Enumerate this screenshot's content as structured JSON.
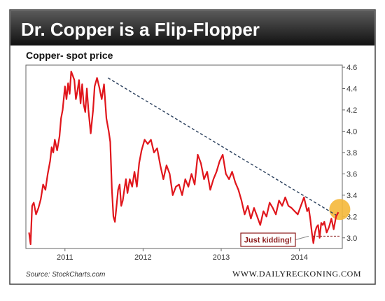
{
  "banner": {
    "title": "Dr. Copper is a Flip-Flopper"
  },
  "chart_title": "Copper- spot price",
  "source": "Source: StockCharts.com",
  "brand": "WWW.DAILYRECKONING.COM",
  "colors": {
    "banner_top": "#5a5a5a",
    "banner_bottom": "#111111",
    "line": "#e0161c",
    "trend": "#2a3f5c",
    "highlight": "#f5b83a",
    "annotation_border": "#8b1a1a",
    "annotation_text": "#8b1a1a"
  },
  "chart_data": {
    "type": "line",
    "title": "Copper- spot price",
    "xlabel": "",
    "ylabel": "",
    "x_ticks": [
      "2011",
      "2012",
      "2013",
      "2014"
    ],
    "y_ticks": [
      3.0,
      3.2,
      3.4,
      3.6,
      3.8,
      4.0,
      4.2,
      4.4,
      4.6
    ],
    "xlim": [
      2010.5,
      2014.55
    ],
    "ylim": [
      2.9,
      4.62
    ],
    "grid": false,
    "series": [
      {
        "x": [
          2010.54,
          2010.56,
          2010.58,
          2010.6,
          2010.63,
          2010.66,
          2010.69,
          2010.72,
          2010.75,
          2010.78,
          2010.81,
          2010.83,
          2010.85,
          2010.87,
          2010.9,
          2010.93,
          2010.95,
          2010.97,
          2011.0,
          2011.02,
          2011.04,
          2011.06,
          2011.08,
          2011.1,
          2011.12,
          2011.14,
          2011.16,
          2011.18,
          2011.2,
          2011.22,
          2011.24,
          2011.26,
          2011.28,
          2011.3,
          2011.33,
          2011.36,
          2011.38,
          2011.41,
          2011.44,
          2011.47,
          2011.5,
          2011.53,
          2011.56,
          2011.58,
          2011.6,
          2011.62,
          2011.64,
          2011.66,
          2011.68,
          2011.7,
          2011.72,
          2011.74,
          2011.76,
          2011.78,
          2011.8,
          2011.83,
          2011.86,
          2011.89,
          2011.92,
          2011.95,
          2011.98,
          2012.02,
          2012.06,
          2012.1,
          2012.14,
          2012.18,
          2012.22,
          2012.26,
          2012.3,
          2012.34,
          2012.38,
          2012.42,
          2012.46,
          2012.5,
          2012.54,
          2012.58,
          2012.62,
          2012.66,
          2012.7,
          2012.74,
          2012.78,
          2012.82,
          2012.86,
          2012.9,
          2012.94,
          2012.98,
          2013.02,
          2013.06,
          2013.1,
          2013.14,
          2013.18,
          2013.22,
          2013.26,
          2013.3,
          2013.34,
          2013.38,
          2013.42,
          2013.46,
          2013.5,
          2013.54,
          2013.58,
          2013.62,
          2013.66,
          2013.7,
          2013.74,
          2013.78,
          2013.82,
          2013.86,
          2013.9,
          2013.94,
          2013.98,
          2014.02,
          2014.06,
          2014.1,
          2014.12,
          2014.14,
          2014.16,
          2014.18,
          2014.2,
          2014.22,
          2014.24,
          2014.26,
          2014.28,
          2014.3,
          2014.32,
          2014.35,
          2014.38,
          2014.41,
          2014.44,
          2014.47,
          2014.5
        ],
        "y": [
          3.05,
          2.94,
          3.3,
          3.33,
          3.22,
          3.28,
          3.36,
          3.5,
          3.45,
          3.6,
          3.72,
          3.85,
          3.8,
          3.92,
          3.82,
          3.95,
          4.12,
          4.2,
          4.42,
          4.3,
          4.45,
          4.35,
          4.56,
          4.52,
          4.48,
          4.3,
          4.38,
          4.48,
          4.26,
          4.44,
          4.25,
          4.18,
          4.4,
          4.2,
          3.98,
          4.2,
          4.42,
          4.5,
          4.41,
          4.3,
          4.44,
          4.12,
          4.0,
          3.9,
          3.46,
          3.2,
          3.15,
          3.3,
          3.45,
          3.5,
          3.3,
          3.35,
          3.45,
          3.55,
          3.42,
          3.55,
          3.48,
          3.62,
          3.48,
          3.7,
          3.82,
          3.92,
          3.88,
          3.92,
          3.8,
          3.84,
          3.68,
          3.55,
          3.68,
          3.6,
          3.4,
          3.48,
          3.5,
          3.4,
          3.55,
          3.48,
          3.6,
          3.5,
          3.78,
          3.7,
          3.55,
          3.62,
          3.45,
          3.55,
          3.62,
          3.72,
          3.78,
          3.6,
          3.55,
          3.62,
          3.52,
          3.45,
          3.35,
          3.22,
          3.3,
          3.18,
          3.28,
          3.2,
          3.12,
          3.25,
          3.2,
          3.33,
          3.28,
          3.22,
          3.35,
          3.3,
          3.38,
          3.3,
          3.28,
          3.25,
          3.22,
          3.3,
          3.38,
          3.25,
          3.28,
          3.18,
          3.05,
          2.95,
          3.05,
          3.1,
          3.12,
          3.0,
          3.14,
          3.12,
          3.15,
          3.05,
          3.1,
          3.18,
          3.08,
          3.2,
          3.24
        ]
      }
    ],
    "trendline": {
      "from": [
        2011.55,
        4.5
      ],
      "to": [
        2014.5,
        3.2
      ]
    },
    "annotations": [
      {
        "text": "Just kidding!",
        "target": [
          2014.12,
          2.95
        ]
      }
    ]
  }
}
